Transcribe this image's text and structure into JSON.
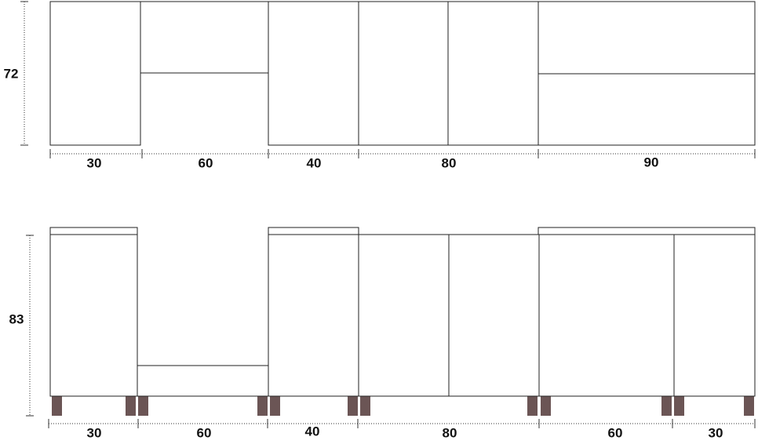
{
  "upper": {
    "height": "72",
    "widths": [
      "30",
      "60",
      "40",
      "80",
      "90"
    ]
  },
  "lower": {
    "height": "83",
    "widths": [
      "30",
      "60",
      "40",
      "80",
      "60",
      "30"
    ]
  }
}
